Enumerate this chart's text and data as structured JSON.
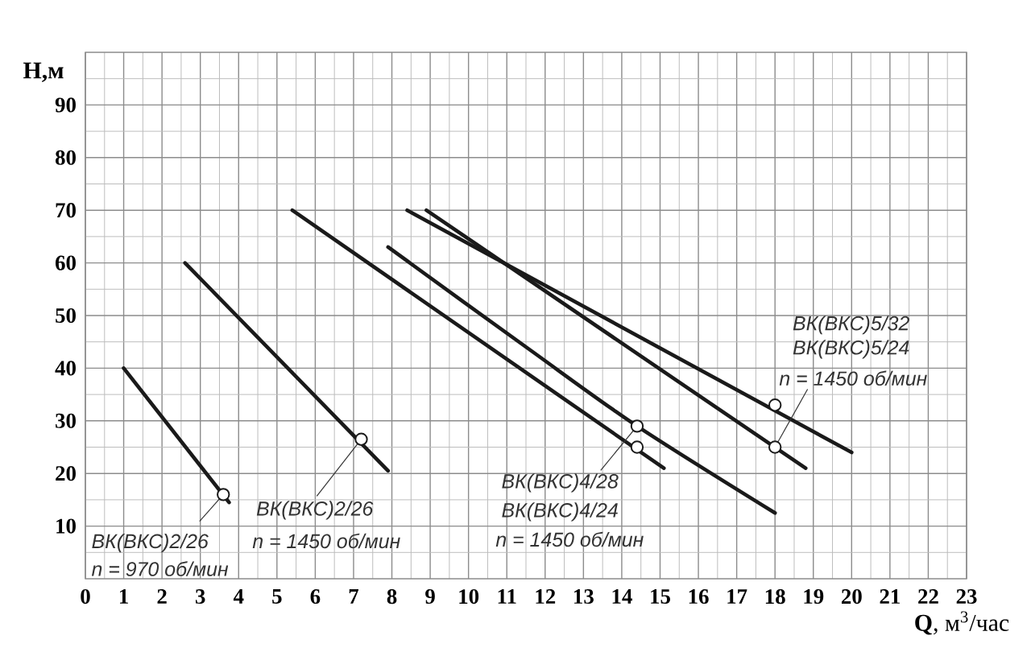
{
  "chart_data": {
    "type": "line",
    "xlabel": "**Q**, м$^{3}$/час",
    "ylabel": "H,м",
    "xlim": [
      0,
      23
    ],
    "ylim": [
      0,
      100
    ],
    "xticks": [
      0,
      1,
      2,
      3,
      4,
      5,
      6,
      7,
      8,
      9,
      10,
      11,
      12,
      13,
      14,
      15,
      16,
      17,
      18,
      19,
      20,
      21,
      22,
      23
    ],
    "yticks": [
      10,
      20,
      30,
      40,
      50,
      60,
      70,
      80,
      90
    ],
    "grid": true,
    "series": [
      {
        "x": [
          1.0,
          3.75
        ],
        "values": [
          40,
          14.5
        ],
        "color": "#1a1a1a"
      },
      {
        "x": [
          2.6,
          7.9
        ],
        "values": [
          60,
          20.5
        ],
        "color": "#1a1a1a"
      },
      {
        "x": [
          5.4,
          15.1
        ],
        "values": [
          70,
          21
        ],
        "color": "#1a1a1a"
      },
      {
        "x": [
          7.9,
          11.6,
          14.4,
          18.0
        ],
        "values": [
          63,
          43.5,
          29,
          12.5
        ],
        "color": "#1a1a1a"
      },
      {
        "x": [
          8.4,
          20.0
        ],
        "values": [
          70,
          24
        ],
        "color": "#1a1a1a"
      },
      {
        "x": [
          8.9,
          18.8
        ],
        "values": [
          70,
          21
        ],
        "color": "#1a1a1a"
      },
      {
        "type": "scatter",
        "marker": "circle",
        "x": [
          3.6,
          7.2,
          14.4,
          14.4,
          18,
          18
        ],
        "values": [
          16,
          26.5,
          29,
          25,
          33,
          25
        ],
        "color": "#1a1a1a"
      }
    ],
    "annotations": [
      {
        "text": "ВК(ВКС)2/26",
        "x": 3.6,
        "y": 16
      },
      "n = 970 об/мин",
      {
        "text": "ВК(ВКС)2/26",
        "x": 7.2,
        "y": 26.5
      },
      "n = 1450 об/мин",
      {
        "text": "ВК(ВКС)4/28",
        "x": 14.4,
        "y": 29
      },
      "ВК(ВКС)4/24",
      "n = 1450 об/мин",
      "ВК(ВКС)5/32",
      "ВК(ВКС)5/24",
      {
        "text": "n = 1450 об/мин",
        "x": 18,
        "y": 25
      }
    ]
  }
}
